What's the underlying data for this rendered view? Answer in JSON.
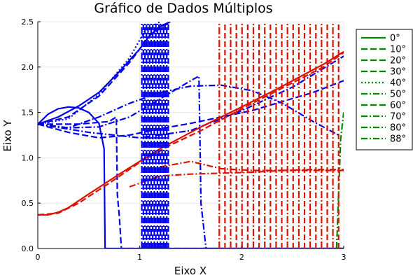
{
  "chart_data": {
    "type": "line",
    "title": "Gráfico de Dados Múltiplos",
    "xlabel": "Eixo X",
    "ylabel": "Eixo Y",
    "xlim": [
      0,
      3
    ],
    "ylim": [
      0,
      2.5
    ],
    "x_ticks": [
      0,
      1,
      2,
      3
    ],
    "y_ticks": [
      0.0,
      0.5,
      1.0,
      1.5,
      2.0,
      2.5
    ],
    "x_tick_labels": [
      "0",
      "1",
      "2",
      "3"
    ],
    "y_tick_labels": [
      "0.0",
      "0.5",
      "1.0",
      "1.5",
      "2.0",
      "2.5"
    ],
    "grid": true,
    "legend_position": "outside-top-right",
    "colors": {
      "blue": "#0000ee",
      "red": "#dd1100",
      "green": "#008800",
      "grid": "#e8e8e8"
    },
    "legend": [
      {
        "label": "0°",
        "dash": "solid"
      },
      {
        "label": "10°",
        "dash": "dash"
      },
      {
        "label": "20°",
        "dash": "dash"
      },
      {
        "label": "30°",
        "dash": "dash"
      },
      {
        "label": "40°",
        "dash": "dot"
      },
      {
        "label": "50°",
        "dash": "dashdot"
      },
      {
        "label": "60°",
        "dash": "dash"
      },
      {
        "label": "70°",
        "dash": "dashdot"
      },
      {
        "label": "80°",
        "dash": "dashdot"
      },
      {
        "label": "88°",
        "dash": "dashdot"
      }
    ],
    "series": [
      {
        "color": "blue",
        "dash": "solid",
        "x": [
          0,
          0.1,
          0.2,
          0.3,
          0.4,
          0.5,
          0.6,
          0.65,
          0.66,
          0.7,
          0.8,
          1.0,
          1.5,
          2.0,
          2.5,
          3.0
        ],
        "y": [
          1.37,
          1.48,
          1.54,
          1.56,
          1.55,
          1.5,
          1.38,
          1.1,
          0,
          0,
          0,
          0,
          0,
          0,
          0,
          0
        ]
      },
      {
        "color": "blue",
        "dash": "solid",
        "x": [
          0,
          0.2,
          0.4,
          0.6,
          0.8,
          1.0,
          1.1,
          1.2,
          1.3
        ],
        "y": [
          1.37,
          1.45,
          1.57,
          1.72,
          1.95,
          2.2,
          2.35,
          2.45,
          2.5
        ]
      },
      {
        "color": "blue",
        "dash": "dash",
        "x": [
          0,
          0.3,
          0.6,
          0.9,
          1.1,
          1.3
        ],
        "y": [
          1.37,
          1.45,
          1.68,
          2.05,
          2.35,
          2.5
        ]
      },
      {
        "color": "blue",
        "dash": "dot",
        "x": [
          0,
          0.3,
          0.6,
          0.9,
          1.05,
          1.2
        ],
        "y": [
          1.37,
          1.43,
          1.7,
          2.1,
          2.4,
          2.5
        ]
      },
      {
        "color": "blue",
        "dash": "dashdot",
        "x": [
          0,
          0.3,
          0.6,
          0.9,
          1.2,
          1.5,
          1.8,
          2.1,
          2.4,
          2.7,
          2.95
        ],
        "y": [
          1.37,
          1.33,
          1.45,
          1.6,
          1.72,
          1.79,
          1.8,
          1.74,
          1.6,
          1.4,
          1.25
        ]
      },
      {
        "color": "blue",
        "dash": "dash",
        "x": [
          0,
          0.3,
          0.6,
          0.9,
          1.2,
          1.5,
          1.8,
          2.1,
          2.4,
          2.7,
          3.0
        ],
        "y": [
          1.37,
          1.28,
          1.22,
          1.25,
          1.32,
          1.38,
          1.45,
          1.52,
          1.62,
          1.72,
          1.85
        ]
      },
      {
        "color": "blue",
        "dash": "dashdot",
        "x": [
          0,
          0.3,
          0.6,
          0.9,
          1.2,
          1.5,
          1.58,
          1.6,
          1.65,
          2.0,
          2.5,
          3.0
        ],
        "y": [
          1.37,
          1.33,
          1.34,
          1.45,
          1.65,
          1.85,
          1.9,
          0.5,
          0,
          0,
          0,
          0
        ]
      },
      {
        "color": "blue",
        "dash": "dash",
        "x": [
          0,
          0.4,
          0.7,
          0.77,
          0.78,
          0.8,
          0.82,
          0.9,
          1.0,
          1.5,
          2.0,
          2.5,
          3.0
        ],
        "y": [
          1.37,
          1.37,
          1.4,
          1.45,
          0.6,
          0.35,
          0,
          0,
          0,
          0,
          0,
          0,
          0
        ]
      },
      {
        "color": "blue",
        "dash": "dashdot",
        "x": [
          0,
          0.5,
          1.0,
          1.5,
          2.0,
          2.5,
          3.0
        ],
        "y": [
          1.37,
          1.28,
          1.22,
          1.3,
          1.52,
          1.78,
          2.12
        ]
      },
      {
        "color": "red",
        "dash": "solid",
        "x": [
          0,
          0.1,
          0.2,
          0.3,
          0.5,
          0.8,
          1.2,
          1.6,
          2.0,
          2.4,
          2.8,
          3.0
        ],
        "y": [
          0.37,
          0.37,
          0.4,
          0.45,
          0.6,
          0.82,
          1.1,
          1.34,
          1.56,
          1.79,
          2.03,
          2.17
        ]
      },
      {
        "color": "red",
        "dash": "dash",
        "x": [
          0,
          0.2,
          0.4,
          0.7,
          1.0,
          1.3,
          1.6,
          2.0,
          2.4,
          2.8,
          3.0
        ],
        "y": [
          0.37,
          0.39,
          0.5,
          0.72,
          0.95,
          1.14,
          1.3,
          1.54,
          1.77,
          2.0,
          2.16
        ]
      },
      {
        "color": "red",
        "dash": "dashdot",
        "x": [
          0.9,
          1.2,
          1.5,
          1.8,
          2.1,
          2.4,
          2.7,
          3.0
        ],
        "y": [
          0.68,
          0.8,
          0.82,
          0.83,
          0.84,
          0.86,
          0.87,
          0.87
        ]
      },
      {
        "color": "red",
        "dash": "dashdot",
        "x": [
          1.2,
          1.5,
          1.8,
          2.1,
          2.4,
          2.7,
          3.0
        ],
        "y": [
          0.9,
          0.96,
          0.88,
          0.86,
          0.86,
          0.86,
          0.86
        ]
      },
      {
        "color": "green",
        "dash": "dashdot",
        "x": [
          2.93,
          2.95,
          2.97,
          3.0
        ],
        "y": [
          0.0,
          0.6,
          1.2,
          1.5
        ]
      }
    ],
    "oscillation_bands": [
      {
        "color": "blue",
        "x_start": 1.02,
        "x_end": 1.28,
        "count": 18
      },
      {
        "color": "red",
        "x_start": 1.78,
        "x_end": 2.95,
        "count": 22
      }
    ]
  }
}
